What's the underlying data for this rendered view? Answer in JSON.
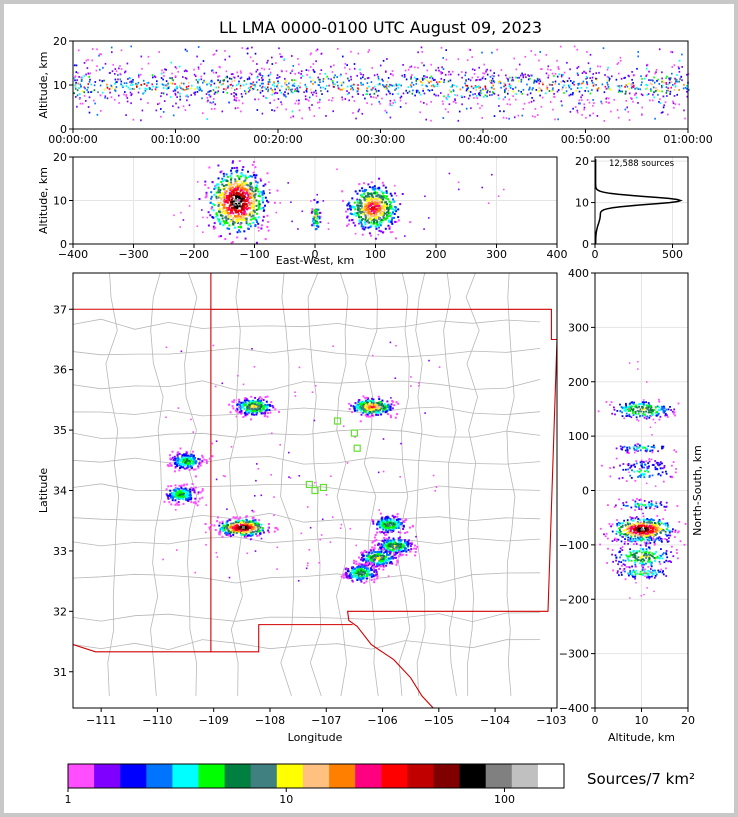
{
  "chart_data": [
    {
      "panel": "time-altitude",
      "type": "heatmap",
      "title": "LL LMA 0000-0100 UTC August 09, 2023",
      "ylabel": "Altitude, km",
      "xlim_minutes": [
        0,
        60
      ],
      "ylim": [
        0,
        20
      ],
      "xticks": [
        "00:00:00",
        "00:10:00",
        "00:20:00",
        "00:30:00",
        "00:40:00",
        "00:50:00",
        "01:00:00"
      ],
      "yticks": [
        "0",
        "10",
        "20"
      ],
      "activity_core_altitude_km": 10
    },
    {
      "panel": "ew-altitude",
      "type": "heatmap",
      "xlabel": "East-West, km",
      "ylabel": "Altitude, km",
      "xlim": [
        -400,
        400
      ],
      "ylim": [
        0,
        20
      ],
      "xticks": [
        "−400",
        "−300",
        "−200",
        "−100",
        "0",
        "100",
        "200",
        "300",
        "400"
      ],
      "yticks": [
        "0",
        "10",
        "20"
      ],
      "clusters_x_km": [
        -130,
        0,
        95
      ]
    },
    {
      "panel": "altitude-histogram",
      "type": "line",
      "annotation": "12,588 sources",
      "xlim": [
        0,
        600
      ],
      "ylim": [
        0,
        21
      ],
      "xticks": [
        "0",
        "500"
      ],
      "yticks": [
        "0",
        "10",
        "20"
      ],
      "peak_altitude_km": 10.5,
      "peak_count": 540
    },
    {
      "panel": "plan-view",
      "type": "heatmap",
      "xlabel": "Longitude",
      "ylabel": "Latitude",
      "xlim": [
        -111.5,
        -102.9
      ],
      "ylim": [
        30.4,
        37.6
      ],
      "xticks": [
        "−111",
        "−110",
        "−109",
        "−108",
        "−107",
        "−106",
        "−105",
        "−104",
        "−103"
      ],
      "yticks": [
        "31",
        "32",
        "33",
        "34",
        "35",
        "36",
        "37"
      ],
      "clusters": [
        {
          "lon": -108.5,
          "lat": 33.4
        },
        {
          "lon": -106.2,
          "lat": 35.4
        },
        {
          "lon": -108.3,
          "lat": 35.4
        },
        {
          "lon": -109.5,
          "lat": 34.5
        },
        {
          "lon": -109.6,
          "lat": 33.95
        },
        {
          "lon": -105.8,
          "lat": 33.1
        },
        {
          "lon": -106.1,
          "lat": 32.9
        },
        {
          "lon": -106.4,
          "lat": 32.65
        },
        {
          "lon": -105.9,
          "lat": 33.45
        }
      ],
      "stations": [
        {
          "lon": -107.05,
          "lat": 34.05
        },
        {
          "lon": -107.2,
          "lat": 34.0
        },
        {
          "lon": -106.8,
          "lat": 35.15
        },
        {
          "lon": -106.5,
          "lat": 34.95
        },
        {
          "lon": -106.45,
          "lat": 34.7
        },
        {
          "lon": -107.3,
          "lat": 34.1
        }
      ]
    },
    {
      "panel": "altitude-ns",
      "type": "heatmap",
      "xlabel": "Altitude, km",
      "ylabel": "North-South, km",
      "xlim": [
        0,
        20
      ],
      "ylim": [
        -400,
        400
      ],
      "xticks": [
        "0",
        "10",
        "20"
      ],
      "yticks": [
        "−400",
        "−300",
        "−200",
        "−100",
        "0",
        "100",
        "200",
        "300",
        "400"
      ]
    },
    {
      "panel": "colorbar",
      "type": "heatmap",
      "label": "Sources/7 km²",
      "ticks": [
        "1",
        "10",
        "100"
      ],
      "colors": [
        "#ff4dff",
        "#8000ff",
        "#0000ff",
        "#0073ff",
        "#00ffff",
        "#00ff00",
        "#008040",
        "#408080",
        "#ffff00",
        "#ffc080",
        "#ff8000",
        "#ff0080",
        "#ff0000",
        "#c00000",
        "#800000",
        "#000000",
        "#808080",
        "#c0c0c0",
        "#ffffff"
      ]
    }
  ]
}
